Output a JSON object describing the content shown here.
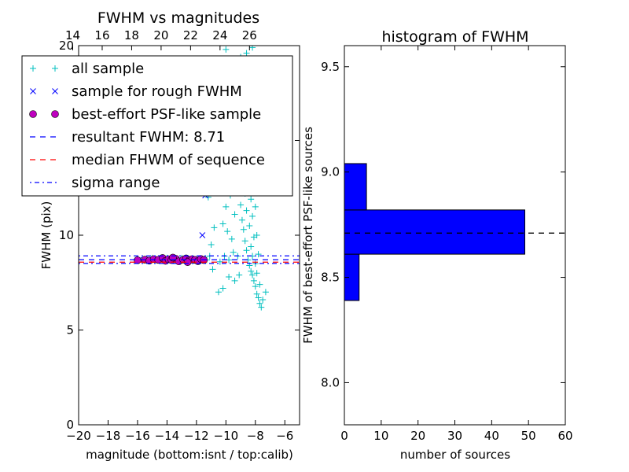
{
  "chart_data": [
    {
      "type": "scatter",
      "title": "FWHM vs magnitudes",
      "xlabel": "magnitude (bottom:isnt / top:calib)",
      "ylabel": "FWHM (pix)",
      "xlim": [
        -20,
        -5
      ],
      "ylim": [
        0,
        20
      ],
      "x_ticks": [
        -20,
        -18,
        -16,
        -14,
        -12,
        -10,
        -8,
        -6
      ],
      "x_tick_labels": [
        "−20",
        "−18",
        "−16",
        "−14",
        "−12",
        "−10",
        "−8",
        "−6"
      ],
      "y_ticks": [
        0,
        5,
        10,
        15,
        20
      ],
      "y_tick_labels": [
        "0",
        "5",
        "10",
        "15",
        "20"
      ],
      "top_axis": {
        "ticks": [
          -20.4,
          -18.4,
          -16.4,
          -14.4,
          -12.4,
          -10.4,
          -8.4
        ],
        "tick_labels": [
          "14",
          "16",
          "18",
          "20",
          "22",
          "24",
          "26"
        ]
      },
      "legend_location": "upper-left",
      "legend": [
        {
          "label": "all sample",
          "marker": "plus",
          "color": "#00bfbf"
        },
        {
          "label": "sample for rough FWHM",
          "marker": "x",
          "color": "#0000ff"
        },
        {
          "label": "best-effort PSF-like sample",
          "marker": "circle",
          "color": "#bf00bf"
        },
        {
          "label": "resultant FWHM: 8.71",
          "line": "dashed",
          "color": "#0000ff"
        },
        {
          "label": "median FHWM of sequence",
          "line": "dashed",
          "color": "#ff0000"
        },
        {
          "label": "sigma range",
          "line": "dashdot",
          "color": "#0000ff"
        }
      ],
      "series": [
        {
          "marker": "plus",
          "color": "#00bfbf",
          "points": [
            [
              -7.6,
              6.2
            ],
            [
              -7.7,
              6.4
            ],
            [
              -7.8,
              6.7
            ],
            [
              -7.5,
              6.6
            ],
            [
              -7.9,
              6.9
            ],
            [
              -7.3,
              7.0
            ],
            [
              -8.0,
              7.3
            ],
            [
              -8.1,
              7.6
            ],
            [
              -7.7,
              7.4
            ],
            [
              -8.2,
              7.9
            ],
            [
              -8.3,
              8.1
            ],
            [
              -7.9,
              8.0
            ],
            [
              -8.4,
              8.4
            ],
            [
              -8.0,
              8.5
            ],
            [
              -8.5,
              8.7
            ],
            [
              -8.2,
              8.9
            ],
            [
              -8.6,
              9.2
            ],
            [
              -8.3,
              9.4
            ],
            [
              -8.7,
              9.7
            ],
            [
              -8.1,
              9.9
            ],
            [
              -8.8,
              10.3
            ],
            [
              -8.4,
              10.5
            ],
            [
              -8.9,
              10.8
            ],
            [
              -8.2,
              11.0
            ],
            [
              -8.6,
              11.3
            ],
            [
              -9.0,
              11.6
            ],
            [
              -8.3,
              11.9
            ],
            [
              -8.7,
              12.2
            ],
            [
              -8.5,
              12.6
            ],
            [
              -8.9,
              12.9
            ],
            [
              -8.4,
              13.3
            ],
            [
              -8.6,
              13.8
            ],
            [
              -8.8,
              14.2
            ],
            [
              -8.3,
              14.6
            ],
            [
              -8.7,
              15.1
            ],
            [
              -8.5,
              15.6
            ],
            [
              -8.9,
              16.0
            ],
            [
              -8.4,
              16.4
            ],
            [
              -8.6,
              16.9
            ],
            [
              -8.8,
              17.2
            ],
            [
              -8.5,
              17.8
            ],
            [
              -8.7,
              18.3
            ],
            [
              -8.3,
              18.9
            ],
            [
              -8.9,
              19.3
            ],
            [
              -8.6,
              19.6
            ],
            [
              -9.2,
              8.9
            ],
            [
              -9.5,
              9.1
            ],
            [
              -9.8,
              8.7
            ],
            [
              -10.1,
              8.9
            ],
            [
              -10.4,
              8.6
            ],
            [
              -9.6,
              9.8
            ],
            [
              -9.9,
              10.2
            ],
            [
              -10.2,
              10.6
            ],
            [
              -9.4,
              11.1
            ],
            [
              -10.0,
              11.5
            ],
            [
              -9.7,
              12.1
            ],
            [
              -10.5,
              12.4
            ],
            [
              -9.3,
              13.0
            ],
            [
              -10.3,
              13.5
            ],
            [
              -9.6,
              14.0
            ],
            [
              -10.7,
              14.8
            ],
            [
              -9.9,
              15.4
            ],
            [
              -10.2,
              16.8
            ],
            [
              -9.4,
              17.9
            ],
            [
              -10.6,
              19.0
            ],
            [
              -9.1,
              7.9
            ],
            [
              -9.4,
              7.6
            ],
            [
              -9.8,
              7.8
            ],
            [
              -10.2,
              7.2
            ],
            [
              -10.5,
              7.0
            ],
            [
              -10.9,
              8.2
            ],
            [
              -11.1,
              8.9
            ],
            [
              -11.3,
              8.7
            ],
            [
              -11.0,
              9.5
            ],
            [
              -10.8,
              10.4
            ],
            [
              -11.2,
              12.0
            ],
            [
              -10.9,
              12.8
            ],
            [
              -11.5,
              8.7
            ],
            [
              -12.0,
              8.7
            ],
            [
              -12.5,
              8.7
            ],
            [
              -13.0,
              8.8
            ],
            [
              -13.5,
              8.7
            ],
            [
              -14.0,
              8.8
            ],
            [
              -14.5,
              8.7
            ],
            [
              -15.0,
              8.8
            ],
            [
              -15.5,
              8.7
            ],
            [
              -16.0,
              8.7
            ],
            [
              -9.0,
              19.4
            ],
            [
              -10.0,
              19.8
            ],
            [
              -9.7,
              18.6
            ],
            [
              -8.2,
              19.9
            ],
            [
              -8.0,
              15.0
            ],
            [
              -8.1,
              13.0
            ],
            [
              -8.0,
              11.5
            ],
            [
              -7.8,
              9.0
            ],
            [
              -7.9,
              10.0
            ]
          ]
        },
        {
          "marker": "x",
          "color": "#0000ff",
          "points": [
            [
              -11.4,
              12.1
            ],
            [
              -11.6,
              10.0
            ],
            [
              -12.0,
              8.7
            ],
            [
              -12.6,
              8.7
            ],
            [
              -13.2,
              8.7
            ],
            [
              -13.8,
              8.7
            ],
            [
              -14.4,
              8.8
            ],
            [
              -15.0,
              8.7
            ],
            [
              -15.6,
              8.7
            ]
          ]
        },
        {
          "marker": "circle",
          "color": "#bf00bf",
          "points": [
            [
              -16.0,
              8.68
            ],
            [
              -15.5,
              8.71
            ],
            [
              -15.2,
              8.66
            ],
            [
              -14.9,
              8.74
            ],
            [
              -14.6,
              8.7
            ],
            [
              -14.3,
              8.8
            ],
            [
              -14.1,
              8.65
            ],
            [
              -13.9,
              8.73
            ],
            [
              -13.7,
              8.69
            ],
            [
              -13.4,
              8.76
            ],
            [
              -13.2,
              8.62
            ],
            [
              -12.9,
              8.71
            ],
            [
              -12.7,
              8.78
            ],
            [
              -12.5,
              8.67
            ],
            [
              -12.3,
              8.74
            ],
            [
              -12.1,
              8.7
            ],
            [
              -11.9,
              8.63
            ],
            [
              -11.7,
              8.75
            ],
            [
              -11.5,
              8.69
            ],
            [
              -12.6,
              8.58
            ],
            [
              -13.6,
              8.82
            ]
          ]
        }
      ],
      "reference_lines": [
        {
          "y": 8.71,
          "style": "dashed",
          "color": "#0000ff"
        },
        {
          "y": 8.58,
          "style": "dashed",
          "color": "#ff0000"
        },
        {
          "y": 8.91,
          "style": "dashdot",
          "color": "#0000ff"
        },
        {
          "y": 8.51,
          "style": "dashdot",
          "color": "#0000ff"
        }
      ]
    },
    {
      "type": "bar",
      "orientation": "horizontal",
      "title": "histogram of FWHM",
      "xlabel": "number of sources",
      "ylabel": "FWHM of best-effort PSF-like sources",
      "xlim": [
        0,
        60
      ],
      "ylim": [
        7.8,
        9.6
      ],
      "x_ticks": [
        0,
        10,
        20,
        30,
        40,
        50,
        60
      ],
      "x_tick_labels": [
        "0",
        "10",
        "20",
        "30",
        "40",
        "50",
        "60"
      ],
      "y_ticks": [
        8.0,
        8.5,
        9.0,
        9.5
      ],
      "y_tick_labels": [
        "8.0",
        "8.5",
        "9.0",
        "9.5"
      ],
      "bins": [
        {
          "from": 8.39,
          "to": 8.61,
          "count": 4
        },
        {
          "from": 8.61,
          "to": 8.82,
          "count": 49
        },
        {
          "from": 8.82,
          "to": 9.04,
          "count": 6
        }
      ],
      "bar_color": "#0000ff",
      "reference_line": {
        "y": 8.71,
        "style": "dashed",
        "color": "#000000"
      }
    }
  ]
}
